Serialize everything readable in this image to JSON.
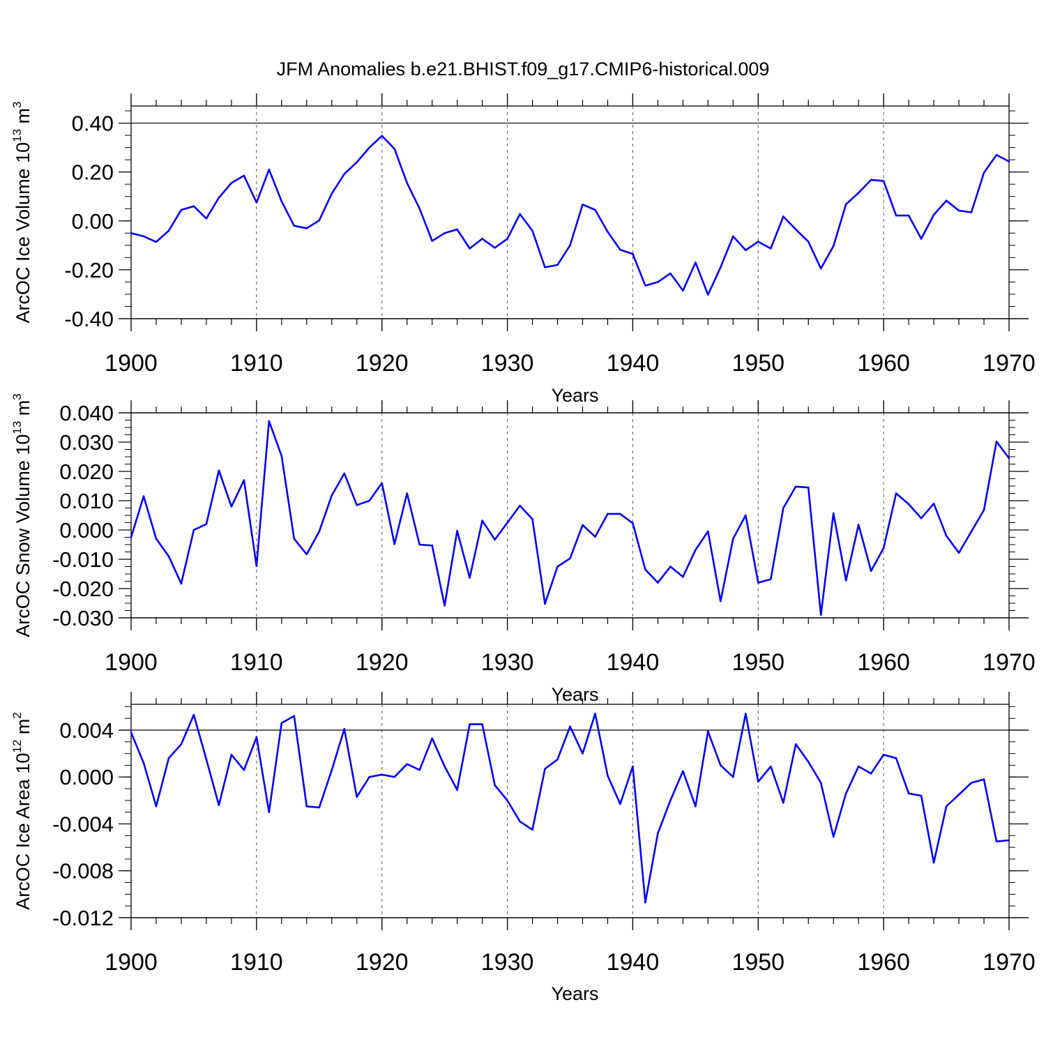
{
  "figure": {
    "title": "JFM Anomalies b.e21.BHIST.f09_g17.CMIP6-historical.009"
  },
  "chart_data": [
    {
      "type": "line",
      "title": "",
      "ylabel": "ArcOC Ice Volume 10",
      "ylabel_sup": "13",
      "ylabel_unit": " m",
      "ylabel_unit_sup": "3",
      "xlabel": "Years",
      "xlim": [
        1900,
        1970
      ],
      "ylim": [
        -0.4,
        0.47
      ],
      "yticks": [
        -0.4,
        -0.2,
        0.0,
        0.2,
        0.4
      ],
      "ytick_labels": [
        "-0.40",
        "-0.20",
        "0.00",
        "0.20",
        "0.40"
      ],
      "xticks": [
        1900,
        1910,
        1920,
        1930,
        1940,
        1950,
        1960,
        1970
      ],
      "xtick_labels": [
        "1900",
        "1910",
        "1920",
        "1930",
        "1940",
        "1950",
        "1960",
        "1970"
      ],
      "grid": "vertical dashed at major x ticks",
      "line_color": "#0000ff",
      "series": [
        {
          "name": "ArcOC Ice Volume",
          "x_start": 1900,
          "values": [
            -0.05,
            -0.063,
            -0.086,
            -0.04,
            0.045,
            0.06,
            0.01,
            0.095,
            0.155,
            0.185,
            0.075,
            0.21,
            0.08,
            -0.02,
            -0.03,
            0.002,
            0.112,
            0.192,
            0.24,
            0.3,
            0.348,
            0.295,
            0.155,
            0.05,
            -0.082,
            -0.05,
            -0.035,
            -0.113,
            -0.073,
            -0.11,
            -0.073,
            0.028,
            -0.04,
            -0.19,
            -0.18,
            -0.1,
            0.067,
            0.045,
            -0.045,
            -0.118,
            -0.135,
            -0.265,
            -0.25,
            -0.215,
            -0.285,
            -0.17,
            -0.302,
            -0.19,
            -0.063,
            -0.12,
            -0.085,
            -0.113,
            0.018,
            -0.035,
            -0.085,
            -0.195,
            -0.103,
            0.068,
            0.115,
            0.168,
            0.163,
            0.022,
            0.022,
            -0.073,
            0.025,
            0.083,
            0.042,
            0.035,
            0.197,
            0.27,
            0.243
          ]
        }
      ]
    },
    {
      "type": "line",
      "title": "",
      "ylabel": "ArcOC Snow Volume 10",
      "ylabel_sup": "13",
      "ylabel_unit": " m",
      "ylabel_unit_sup": "3",
      "xlabel": "Years",
      "xlim": [
        1900,
        1970
      ],
      "ylim": [
        -0.03,
        0.04
      ],
      "yticks": [
        -0.03,
        -0.02,
        -0.01,
        0.0,
        0.01,
        0.02,
        0.03,
        0.04
      ],
      "ytick_labels": [
        "-0.030",
        "-0.020",
        "-0.010",
        "0.000",
        "0.010",
        "0.020",
        "0.030",
        "0.040"
      ],
      "xticks": [
        1900,
        1910,
        1920,
        1930,
        1940,
        1950,
        1960,
        1970
      ],
      "xtick_labels": [
        "1900",
        "1910",
        "1920",
        "1930",
        "1940",
        "1950",
        "1960",
        "1970"
      ],
      "grid": "vertical dashed at major x ticks",
      "line_color": "#0000ff",
      "series": [
        {
          "name": "ArcOC Snow Volume",
          "x_start": 1900,
          "values": [
            -0.0025,
            0.0115,
            -0.003,
            -0.009,
            -0.0183,
            0.0,
            0.002,
            0.0203,
            0.008,
            0.017,
            -0.0123,
            0.0372,
            0.0253,
            -0.003,
            -0.0083,
            -0.0005,
            0.0118,
            0.0193,
            0.0085,
            0.01,
            0.016,
            -0.0048,
            0.0125,
            -0.005,
            -0.0053,
            -0.0258,
            -0.0003,
            -0.0163,
            0.0032,
            -0.0033,
            0.0025,
            0.0083,
            0.0037,
            -0.0252,
            -0.0125,
            -0.0097,
            0.0017,
            -0.0023,
            0.0055,
            0.0055,
            0.0023,
            -0.0135,
            -0.018,
            -0.0125,
            -0.016,
            -0.0068,
            -0.0005,
            -0.0243,
            -0.003,
            0.005,
            -0.018,
            -0.0168,
            0.0075,
            0.0148,
            0.0145,
            -0.029,
            0.0057,
            -0.0172,
            0.0018,
            -0.014,
            -0.0062,
            0.0125,
            0.0088,
            0.004,
            0.009,
            -0.002,
            -0.0078,
            -0.0005,
            0.0068,
            0.0302,
            0.0245
          ]
        }
      ]
    },
    {
      "type": "line",
      "title": "",
      "ylabel": "ArcOC Ice Area 10",
      "ylabel_sup": "12",
      "ylabel_unit": " m",
      "ylabel_unit_sup": "2",
      "xlabel": "Years",
      "xlim": [
        1900,
        1970
      ],
      "ylim": [
        -0.012,
        0.0062
      ],
      "yticks": [
        -0.012,
        -0.008,
        -0.004,
        0.0,
        0.004
      ],
      "ytick_labels": [
        "-0.012",
        "-0.008",
        "-0.004",
        "0.000",
        "0.004"
      ],
      "xticks": [
        1900,
        1910,
        1920,
        1930,
        1940,
        1950,
        1960,
        1970
      ],
      "xtick_labels": [
        "1900",
        "1910",
        "1920",
        "1930",
        "1940",
        "1950",
        "1960",
        "1970"
      ],
      "grid": "vertical dashed at major x ticks",
      "line_color": "#0000ff",
      "series": [
        {
          "name": "ArcOC Ice Area",
          "x_start": 1900,
          "values": [
            0.0038,
            0.0012,
            -0.0025,
            0.0016,
            0.0028,
            0.0053,
            0.0015,
            -0.0024,
            0.0019,
            0.0006,
            0.0034,
            -0.003,
            0.0046,
            0.0052,
            -0.0025,
            -0.0026,
            0.0006,
            0.0041,
            -0.0017,
            0.0,
            0.0002,
            0.0,
            0.0011,
            0.0006,
            0.0033,
            0.0009,
            -0.0011,
            0.0045,
            0.0045,
            -0.0007,
            -0.002,
            -0.0038,
            -0.0045,
            0.0007,
            0.0015,
            0.0043,
            0.002,
            0.0054,
            0.0001,
            -0.0023,
            0.0009,
            -0.0107,
            -0.0048,
            -0.002,
            0.0005,
            -0.0025,
            0.0039,
            0.001,
            0.0,
            0.0054,
            -0.0004,
            0.0009,
            -0.0022,
            0.0028,
            0.0013,
            -0.0005,
            -0.0051,
            -0.0014,
            0.0009,
            0.0003,
            0.0019,
            0.0016,
            -0.0014,
            -0.0016,
            -0.0073,
            -0.0025,
            -0.0015,
            -0.0005,
            -0.0002,
            -0.0055,
            -0.0054
          ]
        }
      ]
    }
  ]
}
